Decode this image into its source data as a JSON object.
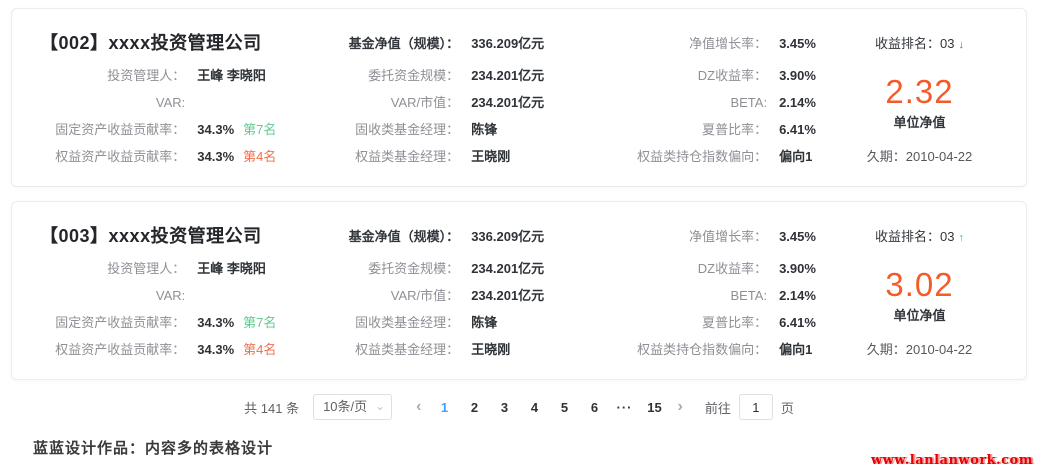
{
  "cards": [
    {
      "title": "【002】xxxx投资管理公司",
      "col1": {
        "rows": [
          {
            "label": "投资管理人：",
            "value": "王峰 李晓阳"
          },
          {
            "label": "VAR:",
            "value": ""
          },
          {
            "label": "固定资产收益贡献率：",
            "value": "34.3%",
            "badge": "第7名",
            "badge_color": "green"
          },
          {
            "label": "权益资产收益贡献率：",
            "value": "34.3%",
            "badge": "第4名",
            "badge_color": "orange"
          }
        ]
      },
      "col2": {
        "header_label": "基金净值（规模）：",
        "header_value": "336.209亿元",
        "rows": [
          {
            "label": "委托资金规模：",
            "value": "234.201亿元"
          },
          {
            "label": "VAR/市值：",
            "value": "234.201亿元"
          },
          {
            "label": "固收类基金经理：",
            "value": "陈锋"
          },
          {
            "label": "权益类基金经理：",
            "value": "王晓刚"
          }
        ]
      },
      "col3": {
        "rows": [
          {
            "label": "净值增长率：",
            "value": "3.45%"
          },
          {
            "label": "DZ收益率：",
            "value": "3.90%"
          },
          {
            "label": "BETA:",
            "value": "2.14%"
          },
          {
            "label": "夏普比率：",
            "value": "6.41%"
          },
          {
            "label": "权益类持仓指数偏向：",
            "value": "偏向1"
          }
        ]
      },
      "col4": {
        "rank_label": "收益排名：03",
        "trend": "down",
        "trend_glyph": "↓",
        "unit_value": "2.32",
        "unit_label": "单位净值",
        "duration": "久期：2010-04-22"
      }
    },
    {
      "title": "【003】xxxx投资管理公司",
      "col1": {
        "rows": [
          {
            "label": "投资管理人：",
            "value": "王峰 李晓阳"
          },
          {
            "label": "VAR:",
            "value": ""
          },
          {
            "label": "固定资产收益贡献率：",
            "value": "34.3%",
            "badge": "第7名",
            "badge_color": "green"
          },
          {
            "label": "权益资产收益贡献率：",
            "value": "34.3%",
            "badge": "第4名",
            "badge_color": "orange"
          }
        ]
      },
      "col2": {
        "header_label": "基金净值（规模）：",
        "header_value": "336.209亿元",
        "rows": [
          {
            "label": "委托资金规模：",
            "value": "234.201亿元"
          },
          {
            "label": "VAR/市值：",
            "value": "234.201亿元"
          },
          {
            "label": "固收类基金经理：",
            "value": "陈锋"
          },
          {
            "label": "权益类基金经理：",
            "value": "王晓刚"
          }
        ]
      },
      "col3": {
        "rows": [
          {
            "label": "净值增长率：",
            "value": "3.45%"
          },
          {
            "label": "DZ收益率：",
            "value": "3.90%"
          },
          {
            "label": "BETA:",
            "value": "2.14%"
          },
          {
            "label": "夏普比率：",
            "value": "6.41%"
          },
          {
            "label": "权益类持仓指数偏向：",
            "value": "偏向1"
          }
        ]
      },
      "col4": {
        "rank_label": "收益排名：03",
        "trend": "up",
        "trend_glyph": "↑",
        "unit_value": "3.02",
        "unit_label": "单位净值",
        "duration": "久期：2010-04-22"
      }
    }
  ],
  "pagination": {
    "total_label": "共 141 条",
    "page_size_label": "10条/页",
    "chevron_glyph": "⌄",
    "prev_glyph": "‹",
    "next_glyph": "›",
    "pages": [
      "1",
      "2",
      "3",
      "4",
      "5",
      "6"
    ],
    "ellipsis": "···",
    "last_page": "15",
    "active_page": "1",
    "goto_label": "前往",
    "goto_value": "1",
    "goto_suffix": "页"
  },
  "footer": {
    "note": "蓝蓝设计作品：内容多的表格设计"
  },
  "watermark": {
    "text": "www.lanlanwork.com"
  },
  "colors": {
    "accent_orange": "#f45b2b",
    "rank_green": "#5ecb90",
    "rank_orange": "#f0704b",
    "active_page_blue": "#409eff",
    "trend_down_red": "#e03a2f",
    "trend_up_green": "#3fbf6b"
  }
}
